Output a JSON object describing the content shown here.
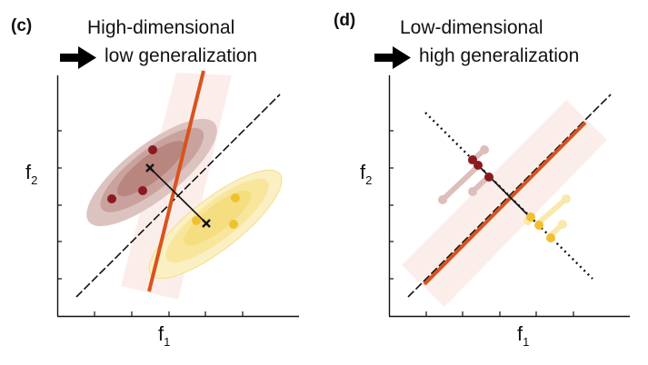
{
  "panels": [
    {
      "label": "(c)",
      "title_line1": "High-dimensional",
      "title_line2": "low generalization",
      "xlabel": "f",
      "xlabel_sub": "1",
      "ylabel": "f",
      "ylabel_sub": "2"
    },
    {
      "label": "(d)",
      "title_line1": "Low-dimensional",
      "title_line2": "high generalization",
      "xlabel": "f",
      "xlabel_sub": "1",
      "ylabel": "f",
      "ylabel_sub": "2"
    }
  ],
  "icons": {
    "arrow": "right-arrow-icon"
  },
  "colors": {
    "dark_red": "#8b1a1f",
    "dark_red_light": "#dcbfbc",
    "yellow": "#f0c030",
    "yellow_light": "#f8e59a",
    "orange_line": "#d9531e",
    "band": "#fbeeea"
  }
}
